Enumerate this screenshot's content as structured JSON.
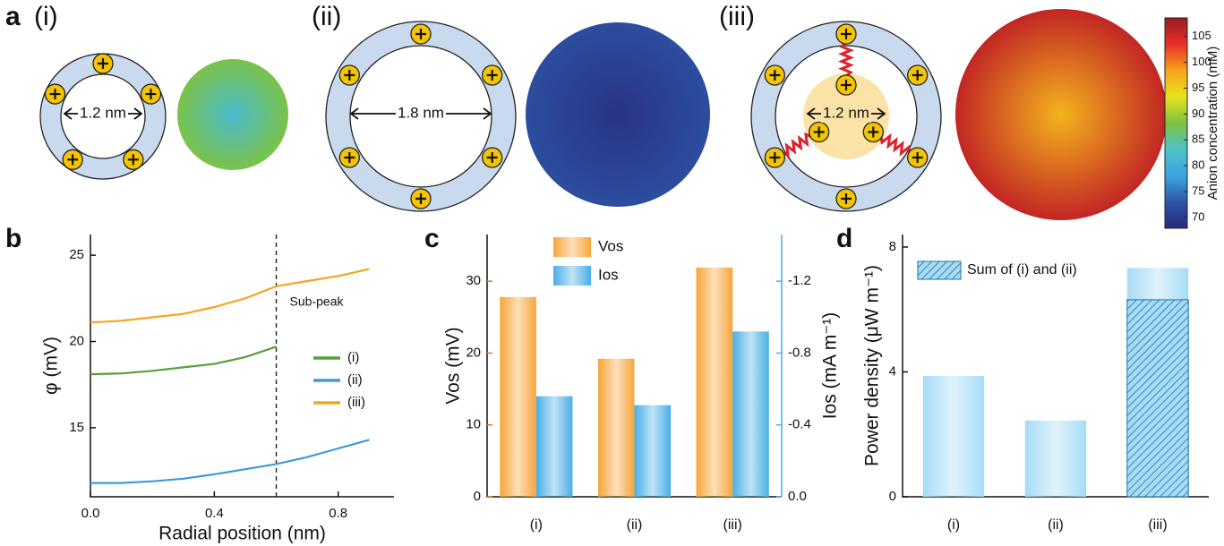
{
  "diagram": {
    "label": "a",
    "cases": [
      {
        "label": "(i)",
        "size": "1.2 nm"
      },
      {
        "label": "(ii)",
        "size": "1.8 nm"
      },
      {
        "label": "(iii)",
        "size": "1.2 nm"
      }
    ]
  },
  "chart_data": [
    {
      "type": "colorbar",
      "title": "Anion concentration (mM)",
      "clim": [
        67.9,
        108.6
      ],
      "ticks": [
        70,
        75,
        80,
        85,
        90,
        95,
        100,
        105
      ],
      "colormap": [
        "#282a7a",
        "#2d56a8",
        "#3aa5e0",
        "#4fc1c8",
        "#7cc242",
        "#e9e21e",
        "#f8a11b",
        "#e8302a",
        "#9a1b1e"
      ],
      "disks": [
        {
          "center": 82,
          "edge": 88
        },
        {
          "center": 69,
          "edge": 72
        },
        {
          "center": 97,
          "edge": 106
        }
      ]
    },
    {
      "type": "line",
      "panel_label": "b",
      "x_label": "Radial position (nm)",
      "y_label": "φ (mV)",
      "x": [
        0,
        0.1,
        0.2,
        0.3,
        0.4,
        0.5,
        0.6,
        0.7,
        0.8,
        0.9
      ],
      "series": [
        {
          "name": "(i)",
          "color": "#5a9e3a",
          "values": [
            18.1,
            18.15,
            18.3,
            18.5,
            18.7,
            19.1,
            19.7,
            null,
            null,
            null
          ]
        },
        {
          "name": "(ii)",
          "color": "#3f9bd8",
          "values": [
            11.8,
            11.8,
            11.9,
            12.05,
            12.3,
            12.6,
            12.9,
            13.3,
            13.8,
            14.3
          ]
        },
        {
          "name": "(iii)",
          "color": "#f5a623",
          "values": [
            21.1,
            21.2,
            21.4,
            21.6,
            22.0,
            22.5,
            23.2,
            23.5,
            23.8,
            24.2
          ]
        }
      ],
      "xlim": [
        0,
        0.98
      ],
      "xticks": [
        {
          "value": 0,
          "label": "0.0"
        },
        0.4,
        0.8
      ],
      "ylim": [
        11,
        26.2
      ],
      "yticks": [
        15,
        20,
        25
      ],
      "vline": 0.6,
      "annotation": "Sub-peak"
    },
    {
      "type": "bar",
      "panel_label": "c",
      "categories": [
        "(i)",
        "(ii)",
        "(iii)"
      ],
      "y_label": "Vos (mV)",
      "y2_label": "Ios (mA m⁻¹)",
      "series": [
        {
          "name": "Vos",
          "color": "#f7a53a",
          "values": [
            27.8,
            19.2,
            31.9
          ]
        },
        {
          "name": "Ios",
          "color": "#4aaee6",
          "values": [
            -0.56,
            -0.51,
            -0.92
          ],
          "axis": "y2"
        }
      ],
      "ylim": [
        0,
        36.5
      ],
      "yticks": [
        0,
        10,
        20,
        30
      ],
      "y2lim": [
        0,
        -1.46
      ],
      "y2ticks": [
        {
          "value": 0,
          "label": "0.0"
        },
        -0.4,
        -0.8,
        -1.2
      ]
    },
    {
      "type": "bar",
      "panel_label": "d",
      "categories": [
        "(i)",
        "(ii)",
        "(iii)"
      ],
      "y_label": "Power density (μW m⁻¹)",
      "values": [
        3.87,
        2.44,
        7.33
      ],
      "color": "#a6dcf6",
      "overlay": {
        "name": "Sum of (i) and (ii)",
        "color": "#1f6fa8",
        "values": [
          null,
          null,
          6.31
        ]
      },
      "ylim": [
        0,
        8.4
      ],
      "yticks": [
        0,
        4,
        8
      ]
    }
  ]
}
